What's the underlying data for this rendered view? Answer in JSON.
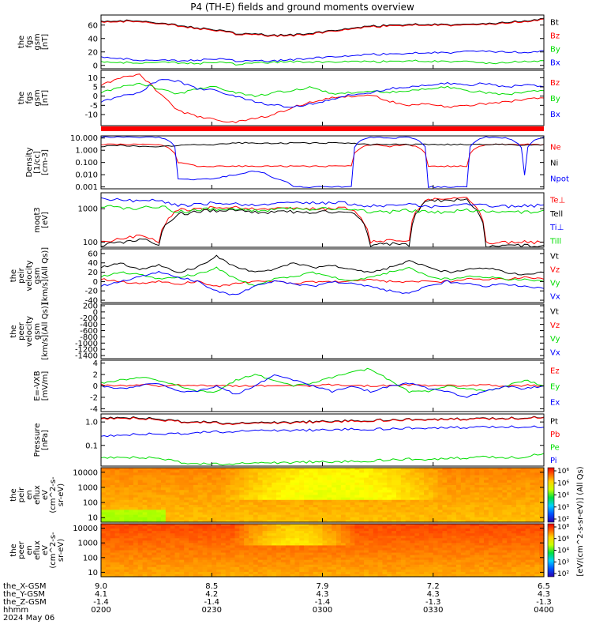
{
  "title": "P4 (TH-E) fields and ground moments overview",
  "colors": {
    "black": "#000000",
    "red": "#ff0000",
    "green": "#00dd00",
    "blue": "#0000ff"
  },
  "chart_data": [
    {
      "type": "line",
      "ylabel": [
        "the",
        "fgs",
        "gsm",
        "[nT]"
      ],
      "ylim": [
        -5,
        75
      ],
      "log": false,
      "ticks": [
        0,
        20,
        40,
        60
      ],
      "tick_labels": [
        "0",
        "20",
        "40",
        "60"
      ],
      "series": [
        {
          "name": "Bt",
          "color": "black",
          "values": [
            65,
            66,
            67,
            64,
            60,
            56,
            52,
            48,
            46,
            45,
            46,
            48,
            51,
            55,
            58,
            60,
            61,
            61,
            60,
            60,
            62,
            64,
            66,
            70
          ]
        },
        {
          "name": "Bz",
          "color": "red",
          "values": [
            64,
            65,
            66,
            63,
            59,
            55,
            51,
            47,
            45,
            44,
            45,
            47,
            50,
            54,
            57,
            59,
            60,
            60,
            59,
            59,
            61,
            63,
            65,
            69
          ]
        },
        {
          "name": "By",
          "color": "green",
          "values": [
            5,
            4,
            4,
            6,
            4,
            3,
            4,
            2,
            3,
            5,
            6,
            5,
            4,
            6,
            5,
            6,
            7,
            6,
            5,
            5,
            3,
            4,
            6,
            7
          ]
        },
        {
          "name": "Bx",
          "color": "blue",
          "values": [
            12,
            10,
            8,
            9,
            7,
            8,
            9,
            7,
            6,
            7,
            9,
            11,
            12,
            14,
            16,
            17,
            18,
            19,
            18,
            20,
            21,
            20,
            19,
            22
          ]
        }
      ]
    },
    {
      "type": "line",
      "ylabel": [
        "the",
        "fgs",
        "gsm",
        "[nT]"
      ],
      "ylim": [
        -16,
        14
      ],
      "log": false,
      "ticks": [
        -10,
        -5,
        0,
        5,
        10
      ],
      "tick_labels": [
        "-10",
        "-5",
        "0",
        "5",
        "10"
      ],
      "series": [
        {
          "name": "Bz",
          "color": "red",
          "values": [
            6,
            10,
            12,
            2,
            -8,
            -11,
            -13,
            -14,
            -12,
            -10,
            -6,
            -3,
            -1,
            0,
            1,
            -3,
            -5,
            -4,
            -6,
            -5,
            -4,
            -3,
            -2,
            -1
          ]
        },
        {
          "name": "By",
          "color": "green",
          "values": [
            2,
            5,
            7,
            4,
            1,
            4,
            5,
            2,
            0,
            2,
            3,
            5,
            1,
            2,
            3,
            2,
            3,
            4,
            5,
            3,
            2,
            1,
            2,
            3
          ]
        },
        {
          "name": "Bx",
          "color": "blue",
          "values": [
            -3,
            0,
            2,
            9,
            8,
            4,
            3,
            0,
            -3,
            -5,
            -6,
            -4,
            -2,
            1,
            2,
            4,
            5,
            6,
            7,
            6,
            7,
            5,
            6,
            5
          ]
        }
      ]
    },
    {
      "type": "line",
      "ylabel": [
        "Density",
        "[1/cc]",
        "[cm-3]"
      ],
      "ylim": [
        0.0007,
        15
      ],
      "log": true,
      "ticks": [
        0.001,
        0.01,
        0.1,
        1,
        10
      ],
      "tick_labels": [
        "0.001",
        "0.010",
        "0.100",
        "1.000",
        "10.000"
      ],
      "series": [
        {
          "name": "Ne",
          "color": "red",
          "values": [
            3,
            3,
            3,
            3,
            0.1,
            0.05,
            0.05,
            0.05,
            0.05,
            0.05,
            0.05,
            0.05,
            0.05,
            0.05,
            3,
            2,
            3,
            0.05,
            0.05,
            0.05,
            3,
            3,
            3,
            3
          ]
        },
        {
          "name": "Ni",
          "color": "black",
          "values": [
            2,
            2.5,
            2,
            2,
            2.5,
            3,
            3,
            4,
            4,
            3.5,
            4,
            4,
            4,
            3.5,
            3,
            3,
            3,
            3,
            3,
            3,
            3,
            3,
            2.5,
            3
          ]
        },
        {
          "name": "Npot",
          "color": "blue",
          "values": [
            12,
            12,
            12,
            12,
            0.005,
            0.004,
            0.005,
            0.01,
            0.02,
            0.005,
            0.001,
            0.001,
            0.001,
            0.001,
            12,
            10,
            12,
            0.001,
            0.001,
            0.001,
            12,
            10,
            0.01,
            12
          ]
        }
      ]
    },
    {
      "type": "line",
      "ylabel": [
        "moqt3",
        "[eV]"
      ],
      "ylim": [
        70,
        3000
      ],
      "log": true,
      "ticks": [
        100,
        1000
      ],
      "tick_labels": [
        "100",
        "1000"
      ],
      "series": [
        {
          "name": "Te⊥",
          "color": "red",
          "values": [
            100,
            120,
            150,
            100,
            900,
            1000,
            1100,
            1100,
            1000,
            1000,
            1000,
            1000,
            1000,
            1000,
            100,
            110,
            100,
            2000,
            2000,
            2000,
            100,
            100,
            100,
            100
          ]
        },
        {
          "name": "Tell",
          "color": "black",
          "values": [
            80,
            100,
            120,
            90,
            700,
            800,
            900,
            900,
            800,
            800,
            800,
            800,
            800,
            800,
            80,
            90,
            80,
            1800,
            1800,
            1800,
            80,
            80,
            80,
            80
          ]
        },
        {
          "name": "Ti⊥",
          "color": "blue",
          "values": [
            2000,
            1800,
            1600,
            1800,
            1200,
            1400,
            1500,
            1400,
            1300,
            1400,
            1500,
            1500,
            1500,
            1400,
            1200,
            1200,
            1300,
            1200,
            1200,
            1300,
            1300,
            1200,
            1200,
            1300
          ]
        },
        {
          "name": "Till",
          "color": "green",
          "values": [
            1200,
            1100,
            1000,
            1200,
            800,
            900,
            1000,
            950,
            900,
            950,
            1000,
            1000,
            1000,
            950,
            800,
            800,
            900,
            800,
            800,
            900,
            900,
            800,
            800,
            900
          ]
        }
      ]
    },
    {
      "type": "line",
      "ylabel": [
        "the",
        "peir",
        "velocity",
        "gsm",
        "[km/s](All Qs)]"
      ],
      "ylim": [
        -45,
        70
      ],
      "log": false,
      "ticks": [
        -40,
        -20,
        0,
        20,
        40,
        60
      ],
      "tick_labels": [
        "-40",
        "-20",
        "0",
        "20",
        "40",
        "60"
      ],
      "series": [
        {
          "name": "Vt",
          "color": "black",
          "values": [
            30,
            40,
            25,
            35,
            20,
            30,
            55,
            30,
            20,
            25,
            40,
            30,
            35,
            25,
            20,
            30,
            45,
            30,
            20,
            25,
            30,
            20,
            15,
            20
          ]
        },
        {
          "name": "Vz",
          "color": "red",
          "values": [
            5,
            0,
            -5,
            0,
            -5,
            0,
            -10,
            -5,
            0,
            0,
            -5,
            0,
            0,
            0,
            5,
            0,
            0,
            0,
            0,
            5,
            5,
            5,
            10,
            5
          ]
        },
        {
          "name": "Vy",
          "color": "green",
          "values": [
            10,
            20,
            15,
            5,
            10,
            15,
            30,
            5,
            -10,
            5,
            10,
            20,
            10,
            0,
            10,
            20,
            30,
            10,
            5,
            10,
            10,
            5,
            5,
            0
          ]
        },
        {
          "name": "Vx",
          "color": "blue",
          "values": [
            -10,
            0,
            10,
            20,
            10,
            0,
            -20,
            -30,
            -10,
            0,
            -5,
            -10,
            0,
            -5,
            -10,
            -20,
            -25,
            -10,
            0,
            -5,
            -10,
            -5,
            -10,
            -15
          ]
        }
      ]
    },
    {
      "type": "line",
      "ylabel": [
        "the",
        "peer",
        "velocity",
        "gsm",
        "[km/s](All Qs)]"
      ],
      "ylim": [
        -1500,
        250
      ],
      "log": false,
      "ticks": [
        -1400,
        -1200,
        -1000,
        -800,
        -600,
        -400,
        -200,
        0,
        200
      ],
      "tick_labels": [
        "-1400",
        "-1200",
        "-1000",
        "-800",
        "-600",
        "-400",
        "-200",
        "0",
        "200"
      ],
      "series": [
        {
          "name": "Vt",
          "color": "black",
          "values": []
        },
        {
          "name": "Vz",
          "color": "red",
          "values": []
        },
        {
          "name": "Vy",
          "color": "green",
          "values": []
        },
        {
          "name": "Vx",
          "color": "blue",
          "values": []
        }
      ]
    },
    {
      "type": "line",
      "ylabel": [
        "E=-VXB",
        "[mV/m]"
      ],
      "ylim": [
        -4.5,
        4.5
      ],
      "log": false,
      "ticks": [
        -4,
        -2,
        0,
        2,
        4
      ],
      "tick_labels": [
        "-4",
        "-2",
        "0",
        "2",
        "4"
      ],
      "series": [
        {
          "name": "Ez",
          "color": "red",
          "values": [
            0.2,
            0,
            0.2,
            0,
            0.1,
            0,
            0.1,
            0,
            0,
            0.1,
            0,
            0,
            0.2,
            0.1,
            0,
            0.1,
            0.2,
            0,
            0.1,
            0,
            0.1,
            0,
            0.1,
            0
          ]
        },
        {
          "name": "Ey",
          "color": "green",
          "values": [
            0.5,
            1,
            1.5,
            1,
            0,
            -1,
            -1,
            1,
            2,
            1,
            0,
            0.5,
            1.5,
            2.5,
            3,
            1,
            -1,
            -1,
            0,
            -0.5,
            -1,
            0,
            1,
            0
          ]
        },
        {
          "name": "Ex",
          "color": "blue",
          "values": [
            0,
            -0.5,
            0,
            0.5,
            -1,
            -1,
            0,
            -1.5,
            0,
            2,
            1,
            0,
            -1,
            0,
            -1,
            0,
            0.5,
            -0.5,
            -1,
            -2,
            -1,
            0,
            -0.5,
            0
          ]
        }
      ]
    },
    {
      "type": "line",
      "ylabel": [
        "Pressure",
        "[nPa]"
      ],
      "ylim": [
        0.013,
        2.2
      ],
      "log": true,
      "ticks": [
        0.1,
        1
      ],
      "tick_labels": [
        "0.1",
        "1.0"
      ],
      "series": [
        {
          "name": "Pt",
          "color": "black",
          "values": [
            1.5,
            1.6,
            1.5,
            1.3,
            1.1,
            1,
            0.95,
            0.9,
            0.9,
            0.95,
            1,
            1.05,
            1.1,
            1.15,
            1.2,
            1.25,
            1.3,
            1.3,
            1.35,
            1.4,
            1.4,
            1.45,
            1.5,
            1.6
          ]
        },
        {
          "name": "Pb",
          "color": "red",
          "values": [
            1.4,
            1.5,
            1.4,
            1.2,
            1.05,
            0.95,
            0.9,
            0.85,
            0.85,
            0.9,
            0.95,
            1,
            1.05,
            1.1,
            1.15,
            1.2,
            1.25,
            1.25,
            1.3,
            1.35,
            1.35,
            1.4,
            1.45,
            1.55
          ]
        },
        {
          "name": "Pe",
          "color": "green",
          "values": [
            0.03,
            0.032,
            0.03,
            0.028,
            0.02,
            0.016,
            0.016,
            0.017,
            0.017,
            0.018,
            0.019,
            0.02,
            0.02,
            0.021,
            0.022,
            0.025,
            0.026,
            0.025,
            0.028,
            0.03,
            0.032,
            0.03,
            0.031,
            0.045
          ]
        },
        {
          "name": "Pi",
          "color": "blue",
          "values": [
            0.25,
            0.28,
            0.3,
            0.3,
            0.32,
            0.35,
            0.38,
            0.4,
            0.42,
            0.43,
            0.45,
            0.45,
            0.48,
            0.5,
            0.5,
            0.52,
            0.55,
            0.55,
            0.58,
            0.6,
            0.6,
            0.62,
            0.62,
            0.6
          ]
        }
      ]
    },
    {
      "type": "heatmap",
      "ylabel": [
        "the",
        "peir",
        "en",
        "eflux",
        "eV",
        "(cm^2-s-",
        "sr-eV)"
      ],
      "ylim": [
        5,
        20000
      ],
      "log": true,
      "ticks": [
        10,
        100,
        1000,
        10000
      ],
      "tick_labels": [
        "10",
        "100",
        "1000",
        "10000"
      ]
    },
    {
      "type": "heatmap",
      "ylabel": [
        "the",
        "peer",
        "en",
        "eflux",
        "eV",
        "(cm^2-s-",
        "sr-eV)"
      ],
      "ylim": [
        5,
        20000
      ],
      "log": true,
      "ticks": [
        10,
        100,
        1000,
        10000
      ],
      "tick_labels": [
        "10",
        "100",
        "1000",
        "10000"
      ]
    }
  ],
  "legends": [
    [
      "Bt",
      "Bz",
      "By",
      "Bx"
    ],
    [
      "Bz",
      "By",
      "Bx"
    ],
    [
      "Ne",
      "Ni",
      "Npot"
    ],
    [
      "Te⊥",
      "Tell",
      "Ti⊥",
      "Till"
    ],
    [
      "Vt",
      "Vz",
      "Vy",
      "Vx"
    ],
    [
      "Vt",
      "Vz",
      "Vy",
      "Vx"
    ],
    [
      "Ez",
      "Ey",
      "Ex"
    ],
    [
      "Pt",
      "Pb",
      "Pe",
      "Pi"
    ]
  ],
  "colorbar": {
    "label": "[eV/(cm^2-s-sr-eV)] (All Qs)",
    "ticks_top": [
      "10^6",
      "10^6",
      "10^4",
      "10^3",
      "10^2"
    ],
    "ticks_bottom": [
      "10^8",
      "10^6",
      "10^4",
      "10^3",
      "10^2"
    ]
  },
  "xaxis": {
    "row_labels": [
      "the_X-GSM",
      "the_Y-GSM",
      "the_Z-GSM",
      "hhmm"
    ],
    "date": "2024 May 06",
    "columns": [
      [
        "9.0",
        "4.1",
        "-1.4",
        "0200"
      ],
      [
        "8.5",
        "4.2",
        "-1.4",
        "0230"
      ],
      [
        "7.9",
        "4.3",
        "-1.4",
        "0300"
      ],
      [
        "7.2",
        "4.3",
        "-1.3",
        "0330"
      ],
      [
        "6.5",
        "4.3",
        "-1.3",
        "0400"
      ]
    ]
  }
}
